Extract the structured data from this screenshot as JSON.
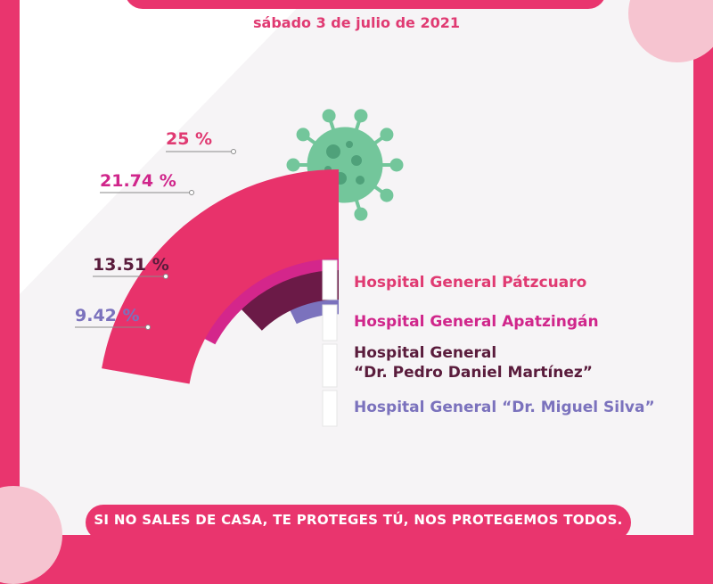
{
  "date": "sábado 3 de julio de 2021",
  "footer_text": "SI NO SALES DE CASA, TE PROTEGES TÚ, NOS PROTEGEMOS TODOS.",
  "icon": "virus-icon",
  "colors": {
    "brand": "#e9356e",
    "virus": "#73c69b"
  },
  "chart_data": {
    "type": "bar",
    "categories": [
      "Hospital General Pátzcuaro",
      "Hospital General Apatzingán",
      "Hospital General\n“Dr. Pedro Daniel Martínez”",
      "Hospital General “Dr. Miguel Silva”"
    ],
    "values": [
      25,
      21.74,
      13.51,
      9.42
    ],
    "value_labels": [
      "25 %",
      "21.74 %",
      "13.51 %",
      "9.42 %"
    ],
    "colors": [
      "#e8326b",
      "#d4268b",
      "#6b1a47",
      "#7b72bd"
    ],
    "label_colors": [
      "#e03a72",
      "#d0268b",
      "#5a1c3c",
      "#7b72bd"
    ]
  }
}
